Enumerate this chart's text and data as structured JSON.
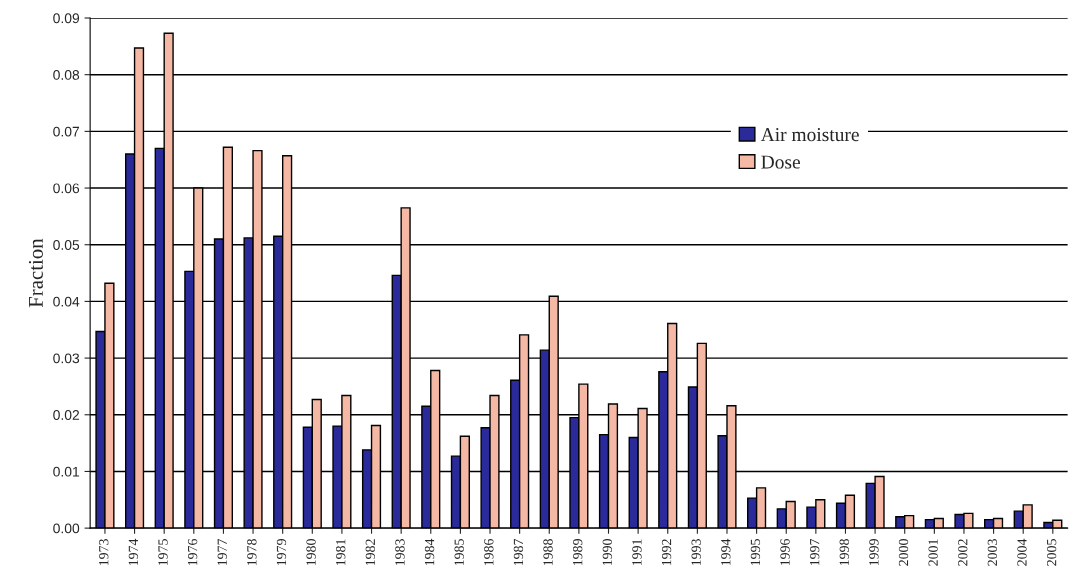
{
  "chart_data": {
    "type": "bar",
    "ylabel": "Fraction",
    "categories": [
      "1973",
      "1974",
      "1975",
      "1976",
      "1977",
      "1978",
      "1979",
      "1980",
      "1981",
      "1982",
      "1983",
      "1984",
      "1985",
      "1986",
      "1987",
      "1988",
      "1989",
      "1990",
      "1991",
      "1992",
      "1993",
      "1994",
      "1995",
      "1996",
      "1997",
      "1998",
      "1999",
      "2000",
      "2001",
      "2002",
      "2003",
      "2004",
      "2005"
    ],
    "series": [
      {
        "name": "Air moisture",
        "color": "#2a2a9a",
        "values": [
          0.0347,
          0.066,
          0.067,
          0.0453,
          0.051,
          0.0512,
          0.0515,
          0.0178,
          0.018,
          0.0138,
          0.0446,
          0.0215,
          0.0127,
          0.0177,
          0.0261,
          0.0314,
          0.0195,
          0.0165,
          0.016,
          0.0276,
          0.0249,
          0.0163,
          0.0053,
          0.0034,
          0.0037,
          0.0044,
          0.0079,
          0.002,
          0.0015,
          0.0024,
          0.0015,
          0.003,
          0.001
        ]
      },
      {
        "name": "Dose",
        "color": "#f4b8a4",
        "values": [
          0.0432,
          0.0847,
          0.0873,
          0.06,
          0.0672,
          0.0666,
          0.0657,
          0.0227,
          0.0234,
          0.0181,
          0.0565,
          0.0278,
          0.0162,
          0.0234,
          0.0341,
          0.0409,
          0.0254,
          0.0219,
          0.0211,
          0.0361,
          0.0326,
          0.0216,
          0.0071,
          0.0047,
          0.005,
          0.0058,
          0.0091,
          0.0022,
          0.0017,
          0.0026,
          0.0017,
          0.0041,
          0.0014
        ]
      }
    ],
    "ylim": [
      0,
      0.09
    ],
    "yticks": [
      {
        "value": 0,
        "label": "0.00"
      },
      {
        "value": 0.01,
        "label": "0.01"
      },
      {
        "value": 0.02,
        "label": "0.02"
      },
      {
        "value": 0.03,
        "label": "0.03"
      },
      {
        "value": 0.04,
        "label": "0.04"
      },
      {
        "value": 0.05,
        "label": "0.05"
      },
      {
        "value": 0.06,
        "label": "0.06"
      },
      {
        "value": 0.07,
        "label": "0.07"
      },
      {
        "value": 0.08,
        "label": "0.08"
      },
      {
        "value": 0.09,
        "label": "0.09"
      }
    ],
    "grid": "y",
    "legend": "top right"
  }
}
